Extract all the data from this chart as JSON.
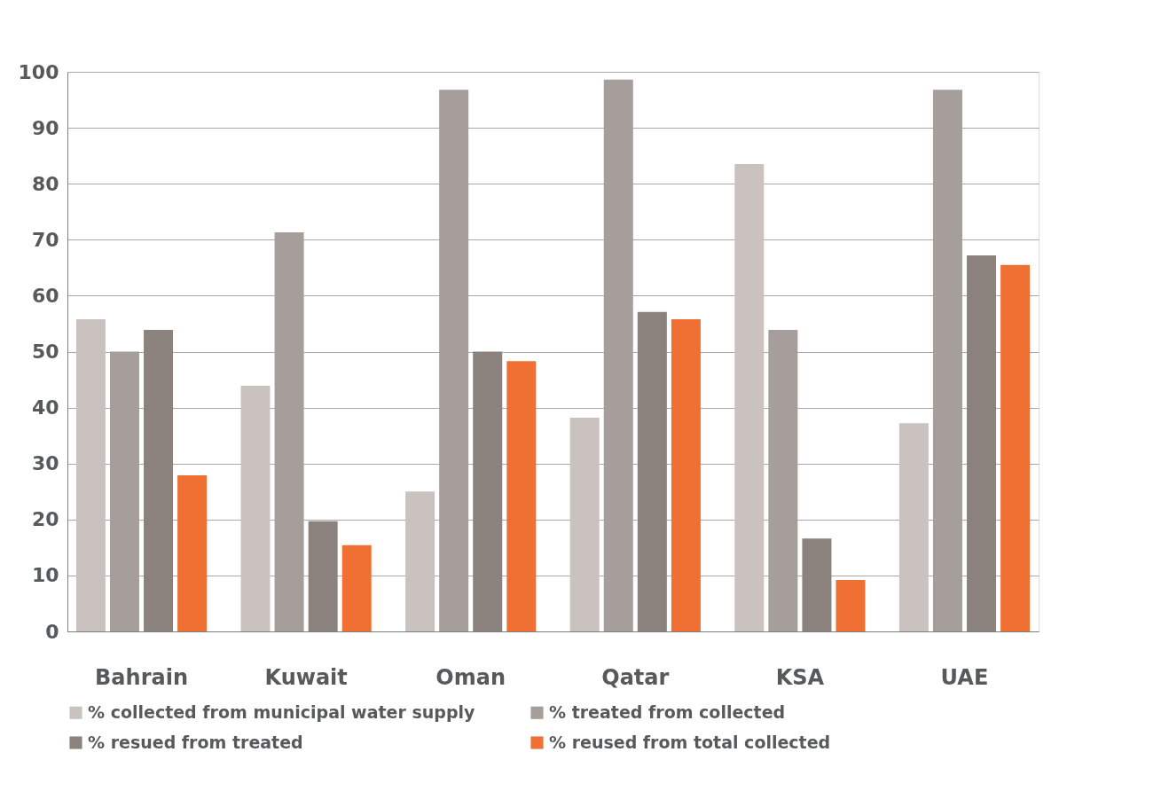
{
  "chart_data": {
    "type": "bar",
    "categories": [
      "Bahrain",
      "Kuwait",
      "Oman",
      "Qatar",
      "KSA",
      "UAE"
    ],
    "series": [
      {
        "name": "% collected from municipal water supply",
        "color": "#c9c2bf",
        "values": [
          55.8,
          43.9,
          25,
          38.2,
          83.5,
          37.2
        ]
      },
      {
        "name": "% treated from collected",
        "color": "#a59e9b",
        "values": [
          50,
          71.3,
          96.8,
          98.6,
          53.9,
          96.8
        ]
      },
      {
        "name": "% resued from treated",
        "color": "#8b817d",
        "values": [
          53.9,
          19.7,
          50,
          57.1,
          16.6,
          67.2
        ]
      },
      {
        "name": "% reused from total collected",
        "color": "#f07033",
        "values": [
          27.9,
          15.4,
          48.3,
          55.8,
          9.2,
          65.5
        ]
      }
    ],
    "ylim": [
      0,
      100
    ],
    "yticks": [
      0,
      10,
      20,
      30,
      40,
      50,
      60,
      70,
      80,
      90,
      100
    ],
    "grid": "y",
    "legend": "bottom"
  }
}
